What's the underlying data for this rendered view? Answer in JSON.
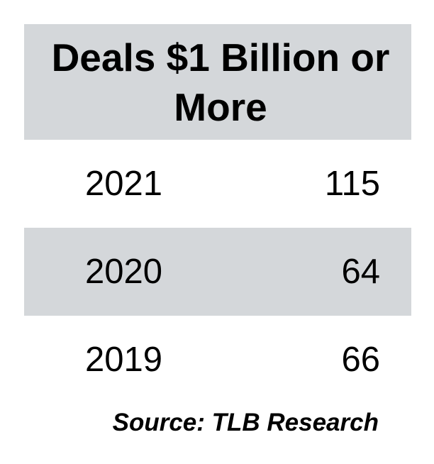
{
  "chart_data": {
    "type": "table",
    "title": "Deals $1 Billion or More",
    "rows": [
      {
        "year": "2021",
        "value": 115
      },
      {
        "year": "2020",
        "value": 64
      },
      {
        "year": "2019",
        "value": 66
      }
    ],
    "source": "Source: TLB Research",
    "colors": {
      "band": "#d4d7da",
      "background": "#ffffff",
      "text": "#000000"
    }
  }
}
